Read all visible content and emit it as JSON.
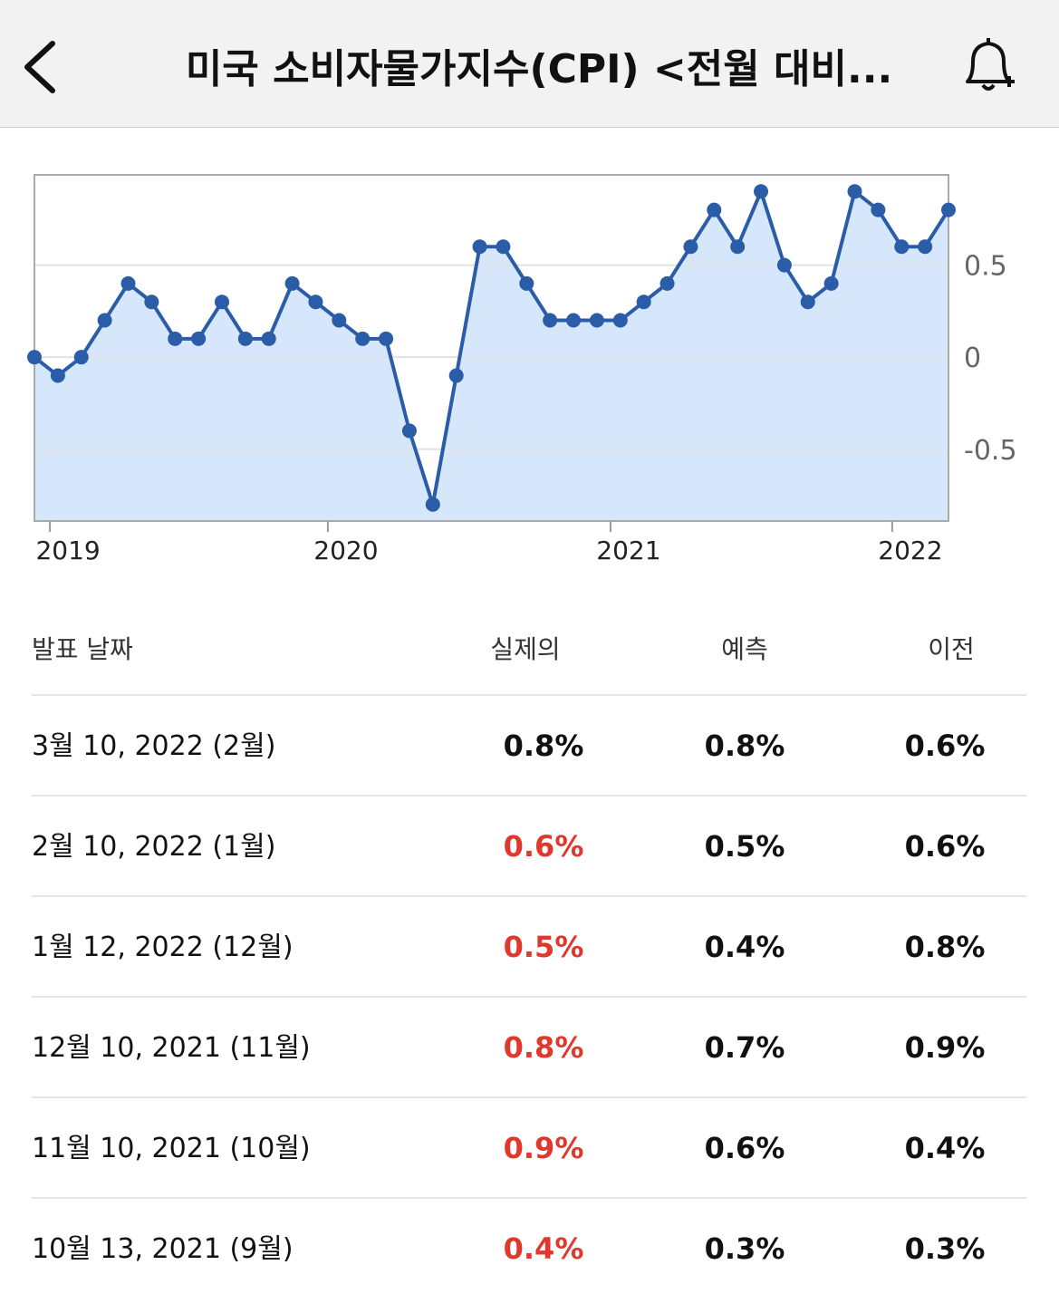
{
  "header": {
    "title": "미국 소비자물가지수(CPI) <전월 대비..."
  },
  "chart_data": {
    "type": "line",
    "categories": [
      null,
      null,
      null,
      null,
      null,
      null,
      null,
      null,
      null,
      null,
      null,
      null,
      null,
      null,
      null,
      null,
      null,
      null,
      null,
      null,
      null,
      null,
      null,
      null,
      null,
      null,
      null,
      null,
      null,
      null,
      null,
      null,
      null,
      null,
      null,
      null,
      null,
      null,
      null,
      null
    ],
    "values": [
      0,
      -0.1,
      0,
      0.2,
      0.4,
      0.3,
      0.1,
      0.1,
      0.3,
      0.1,
      0.1,
      0.4,
      0.3,
      0.2,
      0.1,
      0.1,
      -0.4,
      -0.8,
      -0.1,
      0.6,
      0.6,
      0.4,
      0.2,
      0.2,
      0.2,
      0.2,
      0.3,
      0.4,
      0.6,
      0.8,
      0.6,
      0.9,
      0.5,
      0.3,
      0.4,
      0.9,
      0.8,
      0.6,
      0.6,
      0.8
    ],
    "color": "#2b5ca8",
    "fill": "#d6e6fb",
    "xlim": [
      0,
      39
    ],
    "xticks": [
      {
        "value": 0.66,
        "label": "2019"
      },
      {
        "value": 12.52,
        "label": "2020"
      },
      {
        "value": 24.58,
        "label": "2021"
      },
      {
        "value": 36.6,
        "label": "2022"
      }
    ],
    "ylim": [
      -0.89,
      0.99
    ],
    "yticks": [
      -0.5,
      0,
      0.5
    ],
    "grid": true
  },
  "table": {
    "columns": [
      "발표 날짜",
      "실제의",
      "예측",
      "이전"
    ],
    "rows": [
      {
        "date": "3월 10, 2022 (2월)",
        "actual": "0.8%",
        "forecast": "0.8%",
        "previous": "0.6%",
        "actual_color": "#111111"
      },
      {
        "date": "2월 10, 2022 (1월)",
        "actual": "0.6%",
        "forecast": "0.5%",
        "previous": "0.6%",
        "actual_color": "#e0382c"
      },
      {
        "date": "1월 12, 2022 (12월)",
        "actual": "0.5%",
        "forecast": "0.4%",
        "previous": "0.8%",
        "actual_color": "#e0382c"
      },
      {
        "date": "12월 10, 2021 (11월)",
        "actual": "0.8%",
        "forecast": "0.7%",
        "previous": "0.9%",
        "actual_color": "#e0382c"
      },
      {
        "date": "11월 10, 2021 (10월)",
        "actual": "0.9%",
        "forecast": "0.6%",
        "previous": "0.4%",
        "actual_color": "#e0382c"
      },
      {
        "date": "10월 13, 2021 (9월)",
        "actual": "0.4%",
        "forecast": "0.3%",
        "previous": "0.3%",
        "actual_color": "#e0382c"
      }
    ]
  }
}
